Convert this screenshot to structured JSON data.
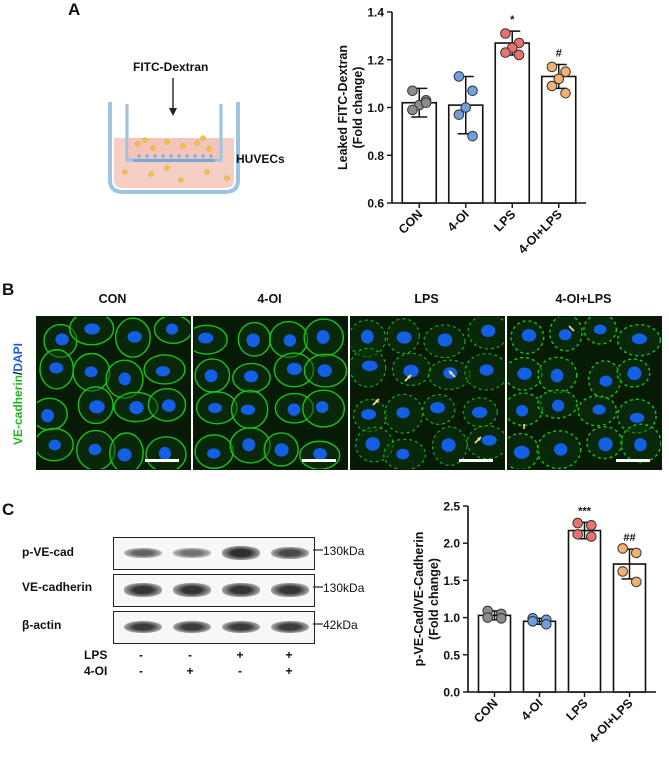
{
  "panels": {
    "a": "A",
    "b": "B",
    "c": "C"
  },
  "schematic": {
    "tracer_label": "FITC-Dextran",
    "cell_label": "HUVECs",
    "colors": {
      "well": "#f5cfc6",
      "insert": "#9dc4e3",
      "dextran": "#f2c33d",
      "cells": "#7ea6d3"
    }
  },
  "microscopy": {
    "conditions": [
      "CON",
      "4-OI",
      "LPS",
      "4-OI+LPS"
    ],
    "stain_label_green": "VE-cadherin",
    "stain_label_sep": "/",
    "stain_label_blue": "DAPI",
    "colors": {
      "green": "#1bd41b",
      "blue": "#1565ff",
      "background": "#061a06",
      "arrow": "#f7e08a"
    }
  },
  "western": {
    "bands": [
      {
        "name": "p-VE-cad",
        "size": "130kDa",
        "intensity": [
          0.55,
          0.45,
          0.95,
          0.75
        ]
      },
      {
        "name": "VE-cadherin",
        "size": "130kDa",
        "intensity": [
          0.9,
          0.9,
          0.9,
          0.9
        ]
      },
      {
        "name": "β-actin",
        "size": "42kDa",
        "intensity": [
          0.85,
          0.85,
          0.85,
          0.85
        ]
      }
    ],
    "treatments": [
      {
        "name": "LPS",
        "signs": [
          "-",
          "-",
          "+",
          "+"
        ]
      },
      {
        "name": "4-OI",
        "signs": [
          "-",
          "+",
          "-",
          "+"
        ]
      }
    ]
  },
  "chart_data": [
    {
      "type": "bar",
      "categories": [
        "CON",
        "4-OI",
        "LPS",
        "4-OI+LPS"
      ],
      "values": [
        1.02,
        1.01,
        1.27,
        1.13
      ],
      "errors": [
        0.06,
        0.12,
        0.05,
        0.05
      ],
      "points": [
        [
          1.07,
          1.03,
          1.01,
          0.99,
          1.02
        ],
        [
          1.13,
          1.07,
          1.0,
          0.97,
          0.88
        ],
        [
          1.31,
          1.27,
          1.25,
          1.23,
          1.22
        ],
        [
          1.17,
          1.15,
          1.12,
          1.09,
          1.06
        ]
      ],
      "significance": [
        "",
        "",
        "*",
        "#"
      ],
      "point_colors": [
        "#8c8c8c",
        "#6f9fe0",
        "#e9736a",
        "#f0b26e"
      ],
      "ylabel": "Leaked FITC-Dextran",
      "ylabel2": "(Fold change)",
      "ylim": [
        0.6,
        1.4
      ],
      "yticks": [
        "0.6",
        "0.8",
        "1.0",
        "1.2",
        "1.4"
      ],
      "grid": false
    },
    {
      "type": "bar",
      "categories": [
        "CON",
        "4-OI",
        "LPS",
        "4-OI+LPS"
      ],
      "values": [
        1.03,
        0.95,
        2.17,
        1.72
      ],
      "errors": [
        0.06,
        0.04,
        0.11,
        0.2
      ],
      "points": [
        [
          1.09,
          1.05,
          1.0,
          0.99
        ],
        [
          0.99,
          0.97,
          0.95,
          0.91
        ],
        [
          2.27,
          2.24,
          2.12,
          2.09
        ],
        [
          1.93,
          1.87,
          1.62,
          1.48
        ]
      ],
      "significance": [
        "",
        "",
        "***",
        "##"
      ],
      "point_colors": [
        "#8c8c8c",
        "#6f9fe0",
        "#e9736a",
        "#f0b26e"
      ],
      "ylabel": "p-VE-Cad/VE-Cadherin",
      "ylabel2": "(Fold change)",
      "ylim": [
        0.0,
        2.5
      ],
      "yticks": [
        "0.0",
        "0.5",
        "1.0",
        "1.5",
        "2.0",
        "2.5"
      ],
      "grid": false
    }
  ]
}
